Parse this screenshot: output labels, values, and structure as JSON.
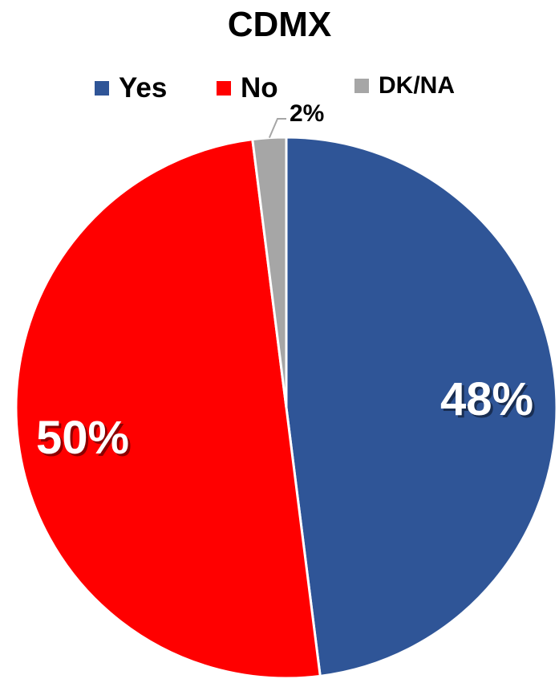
{
  "chart_data": {
    "type": "pie",
    "title": "CDMX",
    "categories": [
      "Yes",
      "No",
      "DK/NA"
    ],
    "values": [
      48,
      50,
      2
    ],
    "data_labels": [
      "48%",
      "50%",
      "2%"
    ],
    "colors": [
      "#2F5597",
      "#FF0000",
      "#A6A6A6"
    ],
    "legend": {
      "position": "top",
      "entries": [
        "Yes",
        "No",
        "DK/NA"
      ]
    },
    "start_angle_deg": 0,
    "direction": "clockwise"
  }
}
